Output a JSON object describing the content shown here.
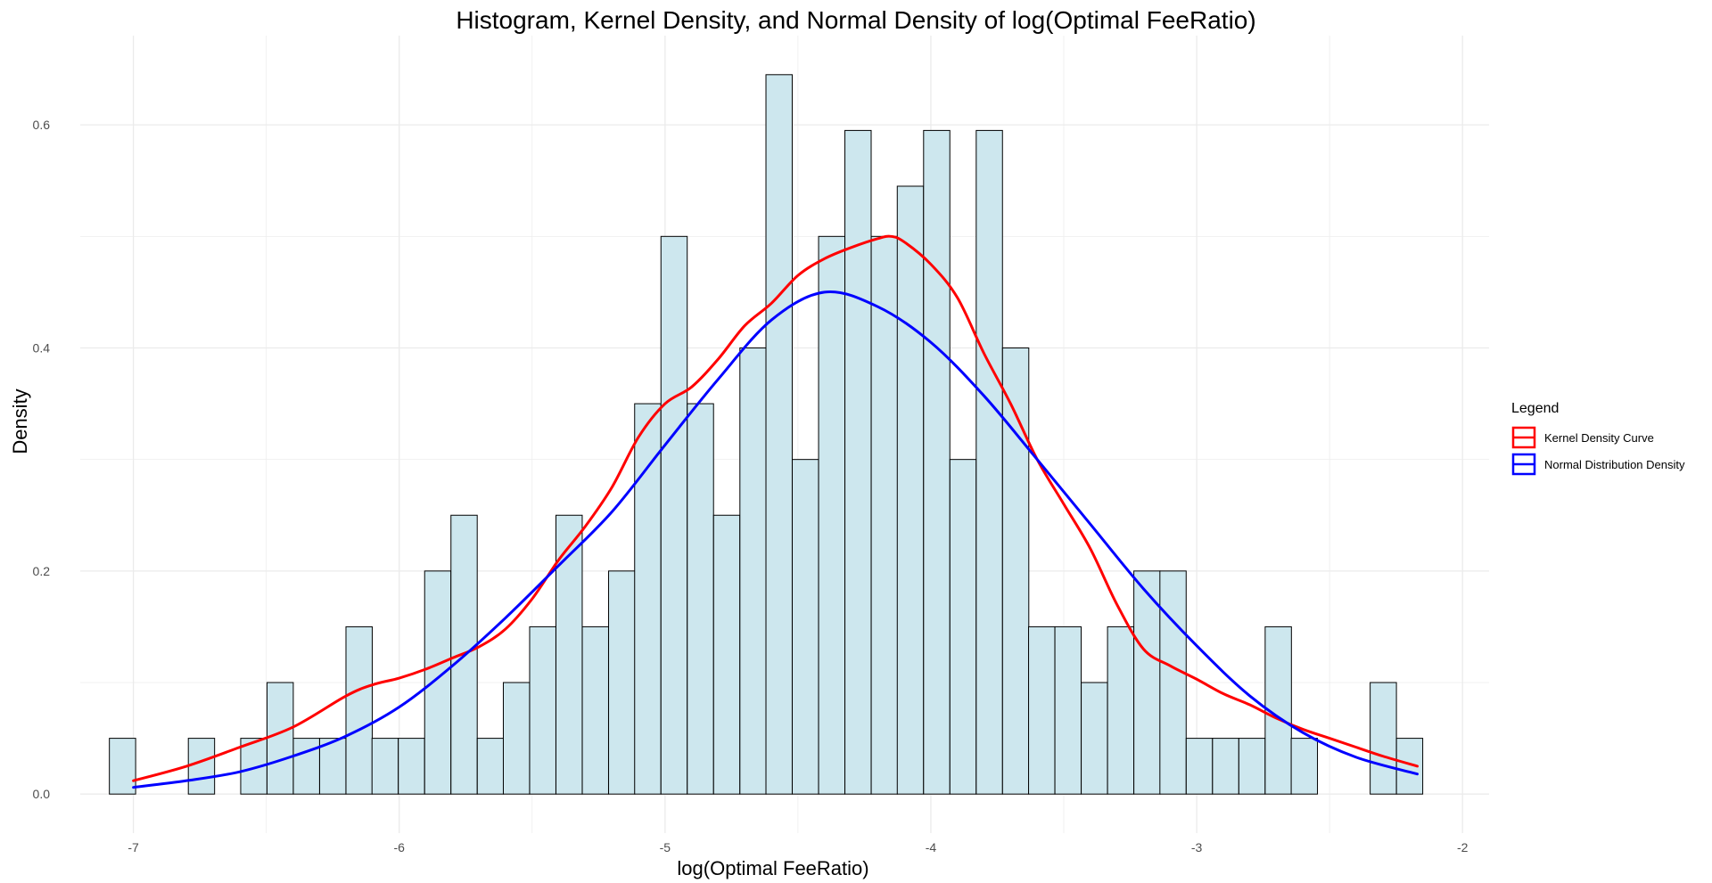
{
  "chart_data": {
    "type": "histogram",
    "title": "Histogram, Kernel Density, and Normal Density of log(Optimal FeeRatio)",
    "xlabel": "log(Optimal FeeRatio)",
    "ylabel": "Density",
    "xlim": [
      -7.2,
      -1.9
    ],
    "ylim": [
      -0.035,
      0.68
    ],
    "x_ticks": [
      -7,
      -6,
      -5,
      -4,
      -3,
      -2
    ],
    "x_tick_labels": [
      "-7",
      "-6",
      "-5",
      "-4",
      "-3",
      "-2"
    ],
    "y_ticks": [
      0.0,
      0.2,
      0.4,
      0.6
    ],
    "y_tick_labels": [
      "0.0",
      "0.2",
      "0.4",
      "0.6"
    ],
    "grid": true,
    "bin_width": 0.0988,
    "bins_x": [
      -7.041,
      -6.942,
      -6.843,
      -6.744,
      -6.645,
      -6.547,
      -6.448,
      -6.349,
      -6.25,
      -6.151,
      -6.053,
      -5.954,
      -5.855,
      -5.756,
      -5.657,
      -5.559,
      -5.46,
      -5.361,
      -5.262,
      -5.163,
      -5.065,
      -4.966,
      -4.867,
      -4.768,
      -4.669,
      -4.571,
      -4.472,
      -4.373,
      -4.274,
      -4.175,
      -4.077,
      -3.978,
      -3.879,
      -3.78,
      -3.681,
      -3.583,
      -3.484,
      -3.385,
      -3.286,
      -3.187,
      -3.089,
      -2.99,
      -2.891,
      -2.792,
      -2.693,
      -2.595,
      -2.496,
      -2.397,
      -2.298,
      -2.199
    ],
    "bins_density": [
      0.05,
      0,
      0,
      0.05,
      0,
      0.05,
      0.1,
      0.05,
      0.05,
      0.15,
      0.05,
      0.05,
      0.2,
      0.25,
      0.05,
      0.1,
      0.15,
      0.25,
      0.15,
      0.2,
      0.35,
      0.5,
      0.35,
      0.25,
      0.4,
      0.645,
      0.3,
      0.5,
      0.595,
      0.5,
      0.545,
      0.595,
      0.3,
      0.595,
      0.4,
      0.15,
      0.15,
      0.1,
      0.15,
      0.2,
      0.2,
      0.05,
      0.05,
      0.05,
      0.15,
      0.05,
      0,
      0,
      0.1,
      0.05
    ],
    "series": [
      {
        "name": "Kernel Density Curve",
        "color": "#ff0000",
        "x": [
          -7.0,
          -6.8,
          -6.6,
          -6.4,
          -6.2,
          -6.1,
          -6.0,
          -5.9,
          -5.8,
          -5.7,
          -5.6,
          -5.5,
          -5.4,
          -5.3,
          -5.2,
          -5.1,
          -5.0,
          -4.9,
          -4.8,
          -4.7,
          -4.6,
          -4.5,
          -4.4,
          -4.3,
          -4.2,
          -4.15,
          -4.1,
          -4.0,
          -3.9,
          -3.8,
          -3.7,
          -3.6,
          -3.5,
          -3.4,
          -3.3,
          -3.2,
          -3.1,
          -3.0,
          -2.9,
          -2.8,
          -2.7,
          -2.6,
          -2.5,
          -2.4,
          -2.3,
          -2.17
        ],
        "y": [
          0.012,
          0.025,
          0.042,
          0.06,
          0.088,
          0.098,
          0.104,
          0.112,
          0.122,
          0.132,
          0.148,
          0.175,
          0.21,
          0.24,
          0.275,
          0.32,
          0.35,
          0.365,
          0.39,
          0.42,
          0.44,
          0.465,
          0.48,
          0.49,
          0.498,
          0.5,
          0.495,
          0.475,
          0.445,
          0.395,
          0.35,
          0.3,
          0.26,
          0.22,
          0.17,
          0.13,
          0.115,
          0.103,
          0.09,
          0.08,
          0.068,
          0.058,
          0.05,
          0.042,
          0.034,
          0.025
        ]
      },
      {
        "name": "Normal Distribution Density",
        "color": "#0000ff",
        "x": [
          -7.0,
          -6.8,
          -6.6,
          -6.4,
          -6.2,
          -6.0,
          -5.8,
          -5.6,
          -5.4,
          -5.2,
          -5.0,
          -4.8,
          -4.6,
          -4.4,
          -4.2,
          -4.0,
          -3.8,
          -3.6,
          -3.4,
          -3.2,
          -3.0,
          -2.8,
          -2.6,
          -2.4,
          -2.17
        ],
        "y": [
          0.006,
          0.012,
          0.02,
          0.034,
          0.052,
          0.078,
          0.115,
          0.158,
          0.205,
          0.253,
          0.313,
          0.372,
          0.425,
          0.45,
          0.437,
          0.405,
          0.357,
          0.3,
          0.242,
          0.184,
          0.133,
          0.088,
          0.055,
          0.033,
          0.018
        ]
      }
    ],
    "legend": {
      "title": "Legend",
      "position": "right",
      "entries": [
        "Kernel Density Curve",
        "Normal Distribution Density"
      ]
    },
    "colors": {
      "bar_fill": "#cde7ee",
      "bar_stroke": "#000000",
      "grid": "#ebebeb",
      "tick_text": "#4d4d4d"
    }
  }
}
